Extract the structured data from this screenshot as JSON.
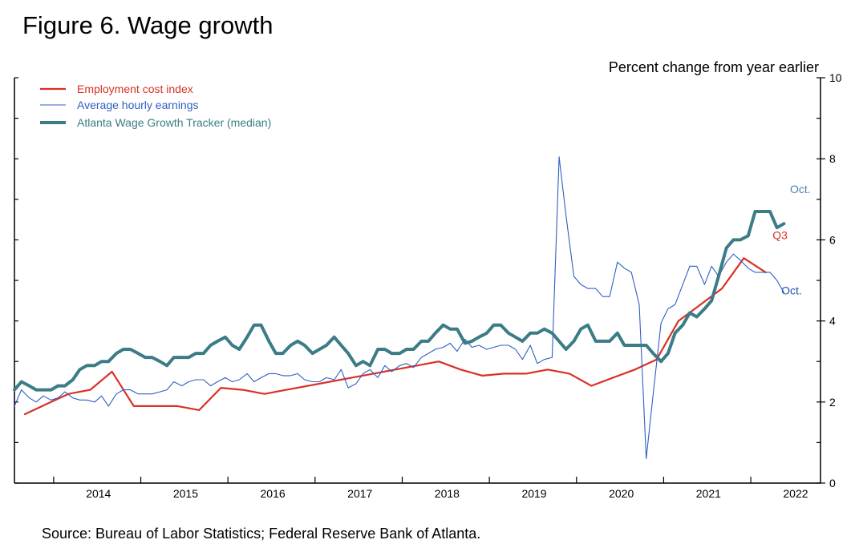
{
  "title": "Figure 6. Wage growth",
  "source": "Source: Bureau of Labor Statistics; Federal Reserve Bank of Atlanta.",
  "chart_data": {
    "type": "line",
    "title": "Figure 6. Wage growth",
    "ylabel": "Percent change from year earlier",
    "xlabel": "",
    "ylim": [
      0,
      10
    ],
    "xlim": [
      2013.55,
      2022.8
    ],
    "yticks": [
      0,
      2,
      4,
      6,
      8,
      10
    ],
    "xticks": [
      2014,
      2015,
      2016,
      2017,
      2018,
      2019,
      2020,
      2021,
      2022
    ],
    "grid": false,
    "legend_position": "top-left",
    "annotations": [
      {
        "text": "Oct.",
        "x": 2022.45,
        "y": 7.25,
        "color": "#4a7fb5"
      },
      {
        "text": "Q3",
        "x": 2022.25,
        "y": 6.12,
        "color": "#d93025"
      },
      {
        "text": "Oct.",
        "x": 2022.35,
        "y": 4.75,
        "color": "#2255b0"
      }
    ],
    "series": [
      {
        "name": "Employment cost index",
        "color": "#d93025",
        "width": 2.2,
        "points": [
          [
            2013.67,
            1.7
          ],
          [
            2013.92,
            1.95
          ],
          [
            2014.17,
            2.2
          ],
          [
            2014.42,
            2.3
          ],
          [
            2014.67,
            2.75
          ],
          [
            2014.92,
            1.9
          ],
          [
            2015.17,
            1.9
          ],
          [
            2015.42,
            1.9
          ],
          [
            2015.67,
            1.8
          ],
          [
            2015.92,
            2.35
          ],
          [
            2016.17,
            2.3
          ],
          [
            2016.42,
            2.2
          ],
          [
            2016.67,
            2.3
          ],
          [
            2016.92,
            2.4
          ],
          [
            2017.17,
            2.5
          ],
          [
            2017.42,
            2.6
          ],
          [
            2017.67,
            2.7
          ],
          [
            2017.92,
            2.8
          ],
          [
            2018.17,
            2.9
          ],
          [
            2018.42,
            3.0
          ],
          [
            2018.67,
            2.8
          ],
          [
            2018.92,
            2.65
          ],
          [
            2019.17,
            2.7
          ],
          [
            2019.42,
            2.7
          ],
          [
            2019.67,
            2.8
          ],
          [
            2019.92,
            2.7
          ],
          [
            2020.17,
            2.4
          ],
          [
            2020.42,
            2.6
          ],
          [
            2020.67,
            2.8
          ],
          [
            2020.92,
            3.05
          ],
          [
            2021.17,
            4.0
          ],
          [
            2021.42,
            4.4
          ],
          [
            2021.67,
            4.8
          ],
          [
            2021.92,
            5.55
          ],
          [
            2022.17,
            5.2
          ]
        ]
      },
      {
        "name": "Average hourly earnings",
        "color": "#2f5fc4",
        "width": 1.1,
        "points": [
          [
            2013.55,
            1.9
          ],
          [
            2013.63,
            2.3
          ],
          [
            2013.72,
            2.1
          ],
          [
            2013.8,
            2.0
          ],
          [
            2013.88,
            2.15
          ],
          [
            2013.97,
            2.05
          ],
          [
            2014.05,
            2.1
          ],
          [
            2014.13,
            2.25
          ],
          [
            2014.22,
            2.1
          ],
          [
            2014.3,
            2.05
          ],
          [
            2014.38,
            2.05
          ],
          [
            2014.47,
            2.0
          ],
          [
            2014.55,
            2.15
          ],
          [
            2014.63,
            1.9
          ],
          [
            2014.72,
            2.2
          ],
          [
            2014.8,
            2.3
          ],
          [
            2014.88,
            2.3
          ],
          [
            2014.97,
            2.2
          ],
          [
            2015.05,
            2.2
          ],
          [
            2015.13,
            2.2
          ],
          [
            2015.22,
            2.25
          ],
          [
            2015.3,
            2.3
          ],
          [
            2015.38,
            2.5
          ],
          [
            2015.47,
            2.4
          ],
          [
            2015.55,
            2.5
          ],
          [
            2015.63,
            2.55
          ],
          [
            2015.72,
            2.55
          ],
          [
            2015.8,
            2.4
          ],
          [
            2015.88,
            2.5
          ],
          [
            2015.97,
            2.6
          ],
          [
            2016.05,
            2.5
          ],
          [
            2016.13,
            2.55
          ],
          [
            2016.22,
            2.7
          ],
          [
            2016.3,
            2.5
          ],
          [
            2016.38,
            2.6
          ],
          [
            2016.47,
            2.7
          ],
          [
            2016.55,
            2.7
          ],
          [
            2016.63,
            2.65
          ],
          [
            2016.72,
            2.65
          ],
          [
            2016.8,
            2.7
          ],
          [
            2016.88,
            2.55
          ],
          [
            2016.97,
            2.5
          ],
          [
            2017.05,
            2.5
          ],
          [
            2017.13,
            2.6
          ],
          [
            2017.22,
            2.55
          ],
          [
            2017.3,
            2.8
          ],
          [
            2017.38,
            2.35
          ],
          [
            2017.47,
            2.45
          ],
          [
            2017.55,
            2.7
          ],
          [
            2017.63,
            2.8
          ],
          [
            2017.72,
            2.6
          ],
          [
            2017.8,
            2.9
          ],
          [
            2017.88,
            2.75
          ],
          [
            2017.97,
            2.9
          ],
          [
            2018.05,
            2.95
          ],
          [
            2018.13,
            2.85
          ],
          [
            2018.22,
            3.1
          ],
          [
            2018.3,
            3.2
          ],
          [
            2018.38,
            3.3
          ],
          [
            2018.47,
            3.35
          ],
          [
            2018.55,
            3.45
          ],
          [
            2018.63,
            3.25
          ],
          [
            2018.72,
            3.55
          ],
          [
            2018.8,
            3.35
          ],
          [
            2018.88,
            3.4
          ],
          [
            2018.97,
            3.3
          ],
          [
            2019.05,
            3.35
          ],
          [
            2019.13,
            3.4
          ],
          [
            2019.22,
            3.4
          ],
          [
            2019.3,
            3.3
          ],
          [
            2019.38,
            3.05
          ],
          [
            2019.47,
            3.4
          ],
          [
            2019.55,
            2.95
          ],
          [
            2019.63,
            3.05
          ],
          [
            2019.72,
            3.1
          ],
          [
            2019.8,
            8.05
          ],
          [
            2019.88,
            6.6
          ],
          [
            2019.97,
            5.1
          ],
          [
            2020.05,
            4.9
          ],
          [
            2020.13,
            4.8
          ],
          [
            2020.22,
            4.8
          ],
          [
            2020.3,
            4.6
          ],
          [
            2020.38,
            4.6
          ],
          [
            2020.47,
            5.45
          ],
          [
            2020.55,
            5.3
          ],
          [
            2020.63,
            5.2
          ],
          [
            2020.72,
            4.4
          ],
          [
            2020.8,
            0.6
          ],
          [
            2020.88,
            2.2
          ],
          [
            2020.97,
            3.95
          ],
          [
            2021.05,
            4.3
          ],
          [
            2021.13,
            4.4
          ],
          [
            2021.22,
            4.9
          ],
          [
            2021.3,
            5.35
          ],
          [
            2021.38,
            5.35
          ],
          [
            2021.47,
            4.9
          ],
          [
            2021.55,
            5.35
          ],
          [
            2021.63,
            5.1
          ],
          [
            2021.72,
            5.45
          ],
          [
            2021.8,
            5.65
          ],
          [
            2021.88,
            5.5
          ],
          [
            2021.97,
            5.3
          ],
          [
            2022.05,
            5.2
          ],
          [
            2022.13,
            5.2
          ],
          [
            2022.22,
            5.2
          ],
          [
            2022.3,
            5.0
          ],
          [
            2022.38,
            4.7
          ]
        ]
      },
      {
        "name": "Atlanta Wage Growth Tracker (median)",
        "color": "#3b7c86",
        "width": 4,
        "points": [
          [
            2013.55,
            2.3
          ],
          [
            2013.63,
            2.5
          ],
          [
            2013.72,
            2.4
          ],
          [
            2013.8,
            2.3
          ],
          [
            2013.88,
            2.3
          ],
          [
            2013.97,
            2.3
          ],
          [
            2014.05,
            2.4
          ],
          [
            2014.13,
            2.4
          ],
          [
            2014.22,
            2.55
          ],
          [
            2014.3,
            2.8
          ],
          [
            2014.38,
            2.9
          ],
          [
            2014.47,
            2.9
          ],
          [
            2014.55,
            3.0
          ],
          [
            2014.63,
            3.0
          ],
          [
            2014.72,
            3.2
          ],
          [
            2014.8,
            3.3
          ],
          [
            2014.88,
            3.3
          ],
          [
            2014.97,
            3.2
          ],
          [
            2015.05,
            3.1
          ],
          [
            2015.13,
            3.1
          ],
          [
            2015.22,
            3.0
          ],
          [
            2015.3,
            2.9
          ],
          [
            2015.38,
            3.1
          ],
          [
            2015.47,
            3.1
          ],
          [
            2015.55,
            3.1
          ],
          [
            2015.63,
            3.2
          ],
          [
            2015.72,
            3.2
          ],
          [
            2015.8,
            3.4
          ],
          [
            2015.88,
            3.5
          ],
          [
            2015.97,
            3.6
          ],
          [
            2016.05,
            3.4
          ],
          [
            2016.13,
            3.3
          ],
          [
            2016.22,
            3.6
          ],
          [
            2016.3,
            3.9
          ],
          [
            2016.38,
            3.9
          ],
          [
            2016.47,
            3.5
          ],
          [
            2016.55,
            3.2
          ],
          [
            2016.63,
            3.2
          ],
          [
            2016.72,
            3.4
          ],
          [
            2016.8,
            3.5
          ],
          [
            2016.88,
            3.4
          ],
          [
            2016.97,
            3.2
          ],
          [
            2017.05,
            3.3
          ],
          [
            2017.13,
            3.4
          ],
          [
            2017.22,
            3.6
          ],
          [
            2017.3,
            3.4
          ],
          [
            2017.38,
            3.2
          ],
          [
            2017.47,
            2.9
          ],
          [
            2017.55,
            3.0
          ],
          [
            2017.63,
            2.9
          ],
          [
            2017.72,
            3.3
          ],
          [
            2017.8,
            3.3
          ],
          [
            2017.88,
            3.2
          ],
          [
            2017.97,
            3.2
          ],
          [
            2018.05,
            3.3
          ],
          [
            2018.13,
            3.3
          ],
          [
            2018.22,
            3.5
          ],
          [
            2018.3,
            3.5
          ],
          [
            2018.38,
            3.7
          ],
          [
            2018.47,
            3.9
          ],
          [
            2018.55,
            3.8
          ],
          [
            2018.63,
            3.8
          ],
          [
            2018.72,
            3.45
          ],
          [
            2018.8,
            3.5
          ],
          [
            2018.88,
            3.6
          ],
          [
            2018.97,
            3.7
          ],
          [
            2019.05,
            3.9
          ],
          [
            2019.13,
            3.9
          ],
          [
            2019.22,
            3.7
          ],
          [
            2019.3,
            3.6
          ],
          [
            2019.38,
            3.5
          ],
          [
            2019.47,
            3.7
          ],
          [
            2019.55,
            3.7
          ],
          [
            2019.63,
            3.8
          ],
          [
            2019.72,
            3.7
          ],
          [
            2019.8,
            3.5
          ],
          [
            2019.88,
            3.3
          ],
          [
            2019.97,
            3.5
          ],
          [
            2020.05,
            3.8
          ],
          [
            2020.13,
            3.9
          ],
          [
            2020.22,
            3.5
          ],
          [
            2020.3,
            3.5
          ],
          [
            2020.38,
            3.5
          ],
          [
            2020.47,
            3.7
          ],
          [
            2020.55,
            3.4
          ],
          [
            2020.63,
            3.4
          ],
          [
            2020.72,
            3.4
          ],
          [
            2020.8,
            3.4
          ],
          [
            2020.88,
            3.2
          ],
          [
            2020.97,
            3.0
          ],
          [
            2021.05,
            3.2
          ],
          [
            2021.13,
            3.7
          ],
          [
            2021.22,
            3.9
          ],
          [
            2021.3,
            4.2
          ],
          [
            2021.38,
            4.1
          ],
          [
            2021.47,
            4.3
          ],
          [
            2021.55,
            4.5
          ],
          [
            2021.63,
            5.1
          ],
          [
            2021.72,
            5.8
          ],
          [
            2021.8,
            6.0
          ],
          [
            2021.88,
            6.0
          ],
          [
            2021.97,
            6.1
          ],
          [
            2022.05,
            6.7
          ],
          [
            2022.13,
            6.7
          ],
          [
            2022.22,
            6.7
          ],
          [
            2022.3,
            6.3
          ],
          [
            2022.38,
            6.4
          ]
        ]
      }
    ]
  }
}
